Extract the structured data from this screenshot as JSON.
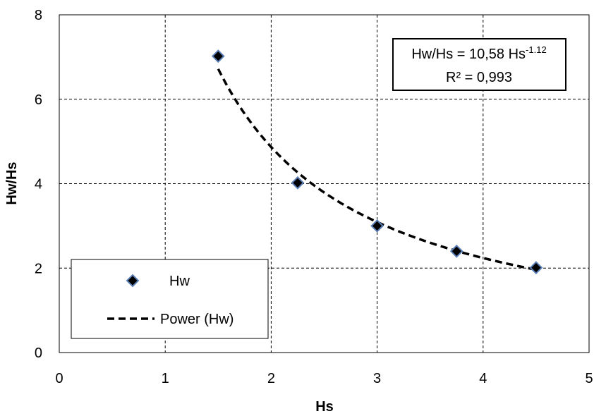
{
  "chart_data": {
    "type": "scatter",
    "xlabel": "Hs",
    "ylabel": "Hw/Hs",
    "xlim": [
      0,
      5
    ],
    "ylim": [
      0,
      8
    ],
    "xticks": [
      "0",
      "1",
      "2",
      "3",
      "4",
      "5"
    ],
    "yticks": [
      "0",
      "2",
      "4",
      "6",
      "8"
    ],
    "grid": true,
    "legend_position": "bottom-left",
    "series": [
      {
        "name": "Hw",
        "type": "scatter",
        "marker": "diamond",
        "color": "#000000",
        "edge_color": "#5b7fb5",
        "x": [
          1.5,
          2.25,
          3.0,
          3.75,
          4.5
        ],
        "y": [
          7.02,
          4.02,
          3.0,
          2.4,
          2.01
        ]
      },
      {
        "name": "Power (Hw)",
        "type": "trendline",
        "style": "dashed",
        "color": "#000000",
        "fit": {
          "kind": "power",
          "coefficient": 10.58,
          "exponent": -1.12
        },
        "x_range": [
          1.5,
          4.5
        ]
      }
    ],
    "annotation": {
      "equation_main": "Hw/Hs = 10,58 Hs",
      "equation_exponent": "-1.12",
      "r_squared": "R² = 0,993"
    }
  }
}
